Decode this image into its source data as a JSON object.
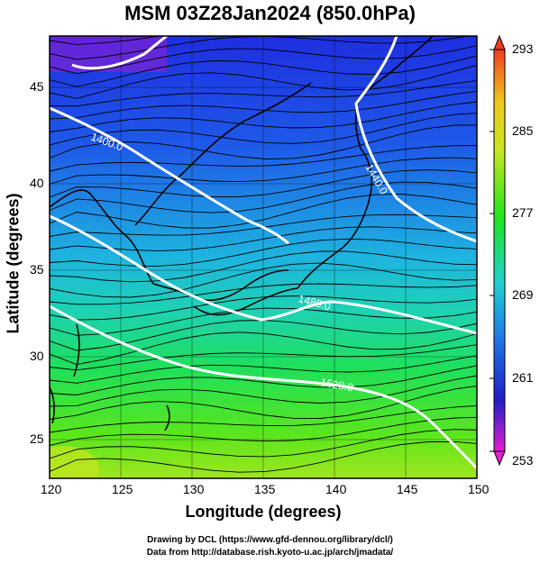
{
  "title": "MSM 03Z28Jan2024 (850.0hPa)",
  "x_axis": {
    "label": "Longitude (degrees)",
    "ticks": [
      "120",
      "125",
      "130",
      "135",
      "140",
      "145",
      "150"
    ],
    "range": [
      120,
      150
    ]
  },
  "y_axis": {
    "label": "Latitude (degrees)",
    "ticks": [
      "25",
      "30",
      "35",
      "40",
      "45"
    ],
    "range": [
      22.4,
      47.6
    ]
  },
  "colorbar": {
    "ticks": [
      "293",
      "285",
      "277",
      "269",
      "261",
      "253"
    ],
    "range": [
      253,
      293
    ],
    "colors": [
      "#e61ed2",
      "#1e1ec8",
      "#1e78e6",
      "#1ed2d2",
      "#1ee61e",
      "#c8e61e",
      "#f0c81e",
      "#f03c1e"
    ]
  },
  "contours": {
    "color": "#ffffff",
    "labels": [
      "1400.0",
      "1440.0",
      "1480.0",
      "1520.0"
    ]
  },
  "credits": {
    "line1": "Drawing by DCL (https://www.gfd-dennou.org/library/dcl/)",
    "line2": "Data from http://database.rish.kyoto-u.ac.jp/arch/jmadata/"
  }
}
